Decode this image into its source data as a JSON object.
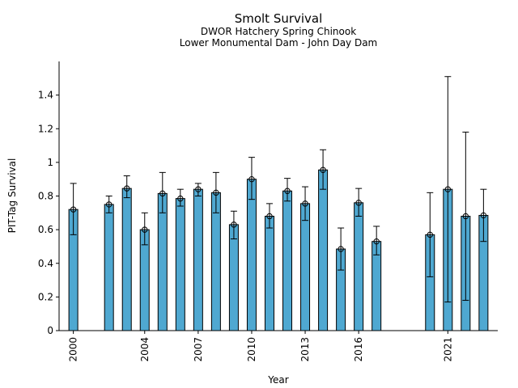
{
  "chart_data": {
    "type": "bar",
    "title": "Smolt Survival",
    "subtitle_lines": [
      "DWOR Hatchery Spring Chinook",
      "Lower Monumental Dam - John Day Dam"
    ],
    "xlabel": "Year",
    "ylabel": "PIT-Tag Survival",
    "xlim": [
      1999.2,
      2023.8
    ],
    "ylim": [
      0,
      1.6
    ],
    "x_ticks": [
      2000,
      2004,
      2007,
      2010,
      2013,
      2016,
      2021
    ],
    "x_tick_labels": [
      "2000",
      "2004",
      "2007",
      "2010",
      "2013",
      "2016",
      "2021"
    ],
    "y_ticks": [
      0,
      0.2,
      0.4,
      0.6,
      0.8,
      1,
      1.2,
      1.4
    ],
    "y_tick_labels": [
      "0",
      "0.2",
      "0.4",
      "0.6",
      "0.8",
      "1",
      "1.2",
      "1.4"
    ],
    "bar_color": "#4fa8d1",
    "edge_color": "#000000",
    "grid": false,
    "legend": "none",
    "bars": [
      {
        "year": 2000,
        "value": 0.72,
        "lower": 0.57,
        "upper": 0.875
      },
      {
        "year": 2002,
        "value": 0.75,
        "lower": 0.7,
        "upper": 0.8
      },
      {
        "year": 2003,
        "value": 0.845,
        "lower": 0.79,
        "upper": 0.92
      },
      {
        "year": 2004,
        "value": 0.6,
        "lower": 0.51,
        "upper": 0.7
      },
      {
        "year": 2005,
        "value": 0.815,
        "lower": 0.7,
        "upper": 0.94
      },
      {
        "year": 2006,
        "value": 0.785,
        "lower": 0.74,
        "upper": 0.84
      },
      {
        "year": 2007,
        "value": 0.84,
        "lower": 0.8,
        "upper": 0.875
      },
      {
        "year": 2008,
        "value": 0.82,
        "lower": 0.7,
        "upper": 0.94
      },
      {
        "year": 2009,
        "value": 0.63,
        "lower": 0.545,
        "upper": 0.71
      },
      {
        "year": 2010,
        "value": 0.9,
        "lower": 0.78,
        "upper": 1.03
      },
      {
        "year": 2011,
        "value": 0.68,
        "lower": 0.61,
        "upper": 0.755
      },
      {
        "year": 2012,
        "value": 0.83,
        "lower": 0.77,
        "upper": 0.905
      },
      {
        "year": 2013,
        "value": 0.755,
        "lower": 0.655,
        "upper": 0.855
      },
      {
        "year": 2014,
        "value": 0.955,
        "lower": 0.84,
        "upper": 1.075
      },
      {
        "year": 2015,
        "value": 0.485,
        "lower": 0.36,
        "upper": 0.61
      },
      {
        "year": 2016,
        "value": 0.76,
        "lower": 0.68,
        "upper": 0.845
      },
      {
        "year": 2017,
        "value": 0.53,
        "lower": 0.45,
        "upper": 0.62
      },
      {
        "year": 2020,
        "value": 0.57,
        "lower": 0.32,
        "upper": 0.82
      },
      {
        "year": 2021,
        "value": 0.84,
        "lower": 0.17,
        "upper": 1.51
      },
      {
        "year": 2022,
        "value": 0.68,
        "lower": 0.18,
        "upper": 1.18
      },
      {
        "year": 2023,
        "value": 0.685,
        "lower": 0.53,
        "upper": 0.84
      }
    ]
  }
}
